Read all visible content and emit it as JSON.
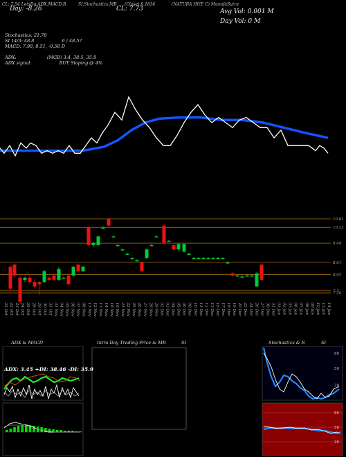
{
  "header": {
    "line1_left": "CL: 7.54 LetsDo ADX,MACD,R",
    "line1_si": "SI,Stochastics,MR",
    "line1_cl": "(Close) 8.1834",
    "line1_name": "(NATURA HUE C) MunafaSutra",
    "change_label": "Day: -8.26",
    "cl_label": "CL: 7.73",
    "avg_vol": "Avg Vol: 0.001 M",
    "day_vol": "Day Vol: 0  M"
  },
  "indicators": {
    "stoch_label": "Stochastics: 21.78",
    "si_label": "SI 14/3: 48.8",
    "si_value": "6 / 48.57",
    "macd_label": "MACD: 7.98, 8.51, -0.58 D",
    "adx_label": "ADX:",
    "adx_values": "(MGB) 3.4, 38.5, 35.9",
    "adx_signal_label": "ADX  signal:",
    "adx_signal": "BUY Sloping @ 4%"
  },
  "price_levels": [
    "10.61",
    "10.22",
    "9.49",
    "8.61",
    "8.05",
    "7.3",
    "7.20"
  ],
  "panels": {
    "adx_title": "ADX  & MACD",
    "intraday_title": "Intra  Day Trading Price  & MR",
    "intraday_si": "SI",
    "stoch_title": "Stochastics & R",
    "stoch_si": "SI",
    "adx_readout": "ADX: 3.45  +DI: 38.46  -DI: 35.9",
    "stoch_ticks": [
      "80",
      "50",
      "20"
    ],
    "rsi_ticks": [
      "80",
      "50",
      "20"
    ]
  },
  "colors": {
    "up": "#00cc33",
    "down": "#ee1111",
    "ma": "#1155ff",
    "price_line": "#ffffff",
    "level_line": "#b07818",
    "macd_bar": "#00dd00"
  },
  "chart_data": {
    "type": "candlestick",
    "x_labels": [
      "21 Oct",
      "22 Oct",
      "23 Oct",
      "24 Oct",
      "25 Oct",
      "28 Oct",
      "29 Oct",
      "30 Oct",
      "31 Oct",
      "01 Nov",
      "04 Nov",
      "05 Nov",
      "06 Nov",
      "07 Nov",
      "08 Nov",
      "11 Nov",
      "12 Nov",
      "13 Nov",
      "14 Nov",
      "18 Nov",
      "19 Nov",
      "21 Nov",
      "22 Nov",
      "25 Nov",
      "26 Nov",
      "27 Nov",
      "28 Nov",
      "29 Nov",
      "02 Dec",
      "03 Dec",
      "04 Dec",
      "05 Dec",
      "06 Dec",
      "09 Dec",
      "10 Dec",
      "11 Dec",
      "12 Dec",
      "13 Dec",
      "16 Dec",
      "17 Dec",
      "18 Dec",
      "19 Dec",
      "20 Dec",
      "23 Dec",
      "24 Dec",
      "26 Dec",
      "27 Dec",
      "30 Dec",
      "31 Dec",
      "01 Jan",
      "02 Jan",
      "03 Jan",
      "06 Jan",
      "07 Jan",
      "08 Jan",
      "09 Jan",
      "10 Jan",
      "13 Jan",
      "14 Jan"
    ],
    "candles": [
      {
        "x": 7,
        "open": 8.4,
        "close": 7.4,
        "high": 8.45,
        "low": 7.3
      },
      {
        "x": 13,
        "open": 8.5,
        "close": 8.0,
        "high": 8.55,
        "low": 7.9
      },
      {
        "x": 21,
        "open": 7.9,
        "close": 6.8,
        "high": 8.0,
        "low": 6.7
      },
      {
        "x": 28,
        "open": 7.8,
        "close": 7.9,
        "high": 7.95,
        "low": 7.7
      },
      {
        "x": 35,
        "open": 7.9,
        "close": 7.7,
        "high": 8.0,
        "low": 7.6
      },
      {
        "x": 42,
        "open": 7.7,
        "close": 7.5,
        "high": 7.8,
        "low": 7.4
      },
      {
        "x": 49,
        "open": 7.7,
        "close": 7.6,
        "high": 7.75,
        "low": 7.1
      },
      {
        "x": 56,
        "open": 7.7,
        "close": 8.2,
        "high": 8.25,
        "low": 7.65
      },
      {
        "x": 63,
        "open": 7.9,
        "close": 7.8,
        "high": 8.0,
        "low": 7.75
      },
      {
        "x": 70,
        "open": 8.0,
        "close": 7.8,
        "high": 8.05,
        "low": 7.75
      },
      {
        "x": 77,
        "open": 7.8,
        "close": 8.3,
        "high": 8.4,
        "low": 7.75
      },
      {
        "x": 84,
        "open": 7.9,
        "close": 7.9,
        "high": 7.95,
        "low": 7.85
      },
      {
        "x": 91,
        "open": 8.0,
        "close": 7.6,
        "high": 8.05,
        "low": 7.55
      },
      {
        "x": 98,
        "open": 8.0,
        "close": 8.4,
        "high": 8.45,
        "low": 7.95
      },
      {
        "x": 105,
        "open": 8.5,
        "close": 8.2,
        "high": 8.55,
        "low": 8.15
      },
      {
        "x": 112,
        "open": 8.2,
        "close": 8.4,
        "high": 8.45,
        "low": 8.15
      },
      {
        "x": 120,
        "open": 10.2,
        "close": 9.4,
        "high": 10.25,
        "low": 9.35
      },
      {
        "x": 127,
        "open": 9.4,
        "close": 9.5,
        "high": 9.55,
        "low": 9.3
      },
      {
        "x": 134,
        "open": 9.4,
        "close": 9.8,
        "high": 9.85,
        "low": 9.35
      },
      {
        "x": 141,
        "open": 10.2,
        "close": 10.2,
        "high": 10.25,
        "low": 10.15
      },
      {
        "x": 149,
        "open": 10.6,
        "close": 10.3,
        "high": 10.65,
        "low": 10.25
      },
      {
        "x": 156,
        "open": 9.8,
        "close": 9.8,
        "high": 9.85,
        "low": 9.75
      },
      {
        "x": 162,
        "open": 9.4,
        "close": 9.4,
        "high": 9.45,
        "low": 9.35
      },
      {
        "x": 169,
        "open": 9.2,
        "close": 9.2,
        "high": 9.25,
        "low": 9.15
      },
      {
        "x": 176,
        "open": 9.0,
        "close": 9.0,
        "high": 9.05,
        "low": 8.95
      },
      {
        "x": 183,
        "open": 8.8,
        "close": 8.8,
        "high": 8.85,
        "low": 8.75
      },
      {
        "x": 190,
        "open": 8.7,
        "close": 8.7,
        "high": 8.75,
        "low": 8.65
      },
      {
        "x": 197,
        "open": 8.6,
        "close": 8.2,
        "high": 8.65,
        "low": 8.15
      },
      {
        "x": 204,
        "open": 8.8,
        "close": 9.2,
        "high": 9.25,
        "low": 8.75
      },
      {
        "x": 211,
        "open": 9.4,
        "close": 9.4,
        "high": 9.45,
        "low": 9.35
      },
      {
        "x": 218,
        "open": 9.8,
        "close": 9.8,
        "high": 9.85,
        "low": 9.75
      },
      {
        "x": 229,
        "open": 10.3,
        "close": 9.5,
        "high": 10.35,
        "low": 9.45
      },
      {
        "x": 236,
        "open": 9.6,
        "close": 9.6,
        "high": 9.65,
        "low": 9.55
      },
      {
        "x": 243,
        "open": 9.4,
        "close": 9.2,
        "high": 9.45,
        "low": 9.15
      },
      {
        "x": 250,
        "open": 9.2,
        "close": 9.45,
        "high": 9.5,
        "low": 9.15
      },
      {
        "x": 258,
        "open": 9.1,
        "close": 9.45,
        "high": 9.5,
        "low": 9.05
      },
      {
        "x": 265,
        "open": 9.0,
        "close": 9.0,
        "high": 9.05,
        "low": 8.95
      },
      {
        "x": 272,
        "open": 8.8,
        "close": 8.8,
        "high": 8.85,
        "low": 8.75
      },
      {
        "x": 279,
        "open": 8.8,
        "close": 8.8,
        "high": 8.85,
        "low": 8.75
      },
      {
        "x": 286,
        "open": 8.8,
        "close": 8.8,
        "high": 8.85,
        "low": 8.75
      },
      {
        "x": 293,
        "open": 8.8,
        "close": 8.8,
        "high": 8.85,
        "low": 8.75
      },
      {
        "x": 300,
        "open": 8.8,
        "close": 8.8,
        "high": 8.85,
        "low": 8.75
      },
      {
        "x": 307,
        "open": 8.8,
        "close": 8.8,
        "high": 8.85,
        "low": 8.75
      },
      {
        "x": 314,
        "open": 8.8,
        "close": 8.8,
        "high": 8.85,
        "low": 8.75
      },
      {
        "x": 321,
        "open": 8.6,
        "close": 8.6,
        "high": 8.65,
        "low": 8.55
      },
      {
        "x": 328,
        "open": 8.1,
        "close": 8.0,
        "high": 8.15,
        "low": 7.95
      },
      {
        "x": 335,
        "open": 8.0,
        "close": 8.0,
        "high": 8.05,
        "low": 7.95
      },
      {
        "x": 342,
        "open": 7.95,
        "close": 7.95,
        "high": 8.0,
        "low": 7.9
      },
      {
        "x": 349,
        "open": 8.0,
        "close": 8.0,
        "high": 8.05,
        "low": 7.95
      },
      {
        "x": 356,
        "open": 8.0,
        "close": 8.0,
        "high": 8.05,
        "low": 7.95
      },
      {
        "x": 363,
        "open": 7.5,
        "close": 8.1,
        "high": 8.15,
        "low": 7.45
      },
      {
        "x": 370,
        "open": 8.5,
        "close": 7.8,
        "high": 8.55,
        "low": 7.75
      }
    ],
    "price_line": [
      {
        "x": 0,
        "y": 8.2
      },
      {
        "x": 6,
        "y": 8.0
      },
      {
        "x": 14,
        "y": 8.3
      },
      {
        "x": 22,
        "y": 7.9
      },
      {
        "x": 30,
        "y": 8.4
      },
      {
        "x": 38,
        "y": 8.2
      },
      {
        "x": 44,
        "y": 8.4
      },
      {
        "x": 52,
        "y": 8.3
      },
      {
        "x": 60,
        "y": 8.0
      },
      {
        "x": 68,
        "y": 8.1
      },
      {
        "x": 76,
        "y": 8.0
      },
      {
        "x": 84,
        "y": 8.1
      },
      {
        "x": 92,
        "y": 8.0
      },
      {
        "x": 100,
        "y": 8.3
      },
      {
        "x": 108,
        "y": 8.0
      },
      {
        "x": 116,
        "y": 8.0
      },
      {
        "x": 124,
        "y": 8.3
      },
      {
        "x": 132,
        "y": 8.6
      },
      {
        "x": 140,
        "y": 8.4
      },
      {
        "x": 148,
        "y": 8.8
      },
      {
        "x": 156,
        "y": 9.1
      },
      {
        "x": 166,
        "y": 9.6
      },
      {
        "x": 176,
        "y": 9.3
      },
      {
        "x": 186,
        "y": 10.2
      },
      {
        "x": 196,
        "y": 9.7
      },
      {
        "x": 206,
        "y": 9.3
      },
      {
        "x": 216,
        "y": 9.0
      },
      {
        "x": 226,
        "y": 8.6
      },
      {
        "x": 236,
        "y": 8.3
      },
      {
        "x": 246,
        "y": 8.3
      },
      {
        "x": 256,
        "y": 8.7
      },
      {
        "x": 266,
        "y": 9.2
      },
      {
        "x": 276,
        "y": 9.6
      },
      {
        "x": 286,
        "y": 9.9
      },
      {
        "x": 296,
        "y": 9.5
      },
      {
        "x": 306,
        "y": 9.2
      },
      {
        "x": 316,
        "y": 9.4
      },
      {
        "x": 326,
        "y": 9.2
      },
      {
        "x": 336,
        "y": 9.0
      },
      {
        "x": 346,
        "y": 9.3
      },
      {
        "x": 356,
        "y": 9.4
      },
      {
        "x": 366,
        "y": 9.2
      },
      {
        "x": 376,
        "y": 9.0
      },
      {
        "x": 386,
        "y": 9.0
      },
      {
        "x": 396,
        "y": 8.6
      },
      {
        "x": 406,
        "y": 8.9
      },
      {
        "x": 416,
        "y": 8.3
      },
      {
        "x": 426,
        "y": 8.3
      },
      {
        "x": 436,
        "y": 8.3
      },
      {
        "x": 446,
        "y": 8.3
      },
      {
        "x": 456,
        "y": 8.1
      },
      {
        "x": 462,
        "y": 8.3
      },
      {
        "x": 468,
        "y": 8.2
      },
      {
        "x": 474,
        "y": 8.0
      }
    ],
    "ma_line": [
      {
        "x": 0,
        "y": 8.1
      },
      {
        "x": 40,
        "y": 8.1
      },
      {
        "x": 80,
        "y": 8.1
      },
      {
        "x": 120,
        "y": 8.1
      },
      {
        "x": 150,
        "y": 8.25
      },
      {
        "x": 170,
        "y": 8.5
      },
      {
        "x": 190,
        "y": 8.9
      },
      {
        "x": 210,
        "y": 9.2
      },
      {
        "x": 230,
        "y": 9.35
      },
      {
        "x": 260,
        "y": 9.4
      },
      {
        "x": 290,
        "y": 9.4
      },
      {
        "x": 320,
        "y": 9.3
      },
      {
        "x": 350,
        "y": 9.3
      },
      {
        "x": 380,
        "y": 9.2
      },
      {
        "x": 410,
        "y": 9.0
      },
      {
        "x": 440,
        "y": 8.8
      },
      {
        "x": 474,
        "y": 8.6
      }
    ]
  }
}
